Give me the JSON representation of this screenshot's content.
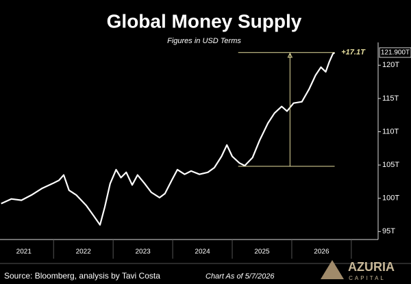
{
  "chart_data": {
    "type": "line",
    "title": "Global Money Supply",
    "subtitle": "Figures in USD Terms",
    "x": [
      2021.12,
      2021.29,
      2021.46,
      2021.63,
      2021.81,
      2021.98,
      2022.09,
      2022.17,
      2022.26,
      2022.38,
      2022.55,
      2022.67,
      2022.78,
      2022.86,
      2022.95,
      2023.05,
      2023.13,
      2023.22,
      2023.32,
      2023.41,
      2023.53,
      2023.64,
      2023.78,
      2023.87,
      2023.99,
      2024.08,
      2024.2,
      2024.31,
      2024.45,
      2024.59,
      2024.7,
      2024.82,
      2024.91,
      2025.0,
      2025.12,
      2025.21,
      2025.34,
      2025.46,
      2025.6,
      2025.71,
      2025.83,
      2025.92,
      2026.03,
      2026.17,
      2026.29,
      2026.4,
      2026.49,
      2026.57,
      2026.63,
      2026.69,
      2026.72
    ],
    "values": [
      99.2,
      99.9,
      99.7,
      100.5,
      101.5,
      102.2,
      102.7,
      103.5,
      101.2,
      100.5,
      98.9,
      97.4,
      96.0,
      98.7,
      102.2,
      104.3,
      103.1,
      103.9,
      102.0,
      103.5,
      102.2,
      100.9,
      100.1,
      100.7,
      102.8,
      104.3,
      103.6,
      104.1,
      103.6,
      103.9,
      104.6,
      106.3,
      108.0,
      106.3,
      105.3,
      104.9,
      106.1,
      108.7,
      111.3,
      112.8,
      113.8,
      113.1,
      114.3,
      114.5,
      116.4,
      118.5,
      119.7,
      119.0,
      120.5,
      121.7,
      121.9
    ],
    "color": "#ffffff",
    "xlim": [
      2021.1,
      2027.45
    ],
    "ylim": [
      93.8,
      122.6
    ],
    "xticks": [
      {
        "value": 2021.5,
        "label": "2021"
      },
      {
        "value": 2022.5,
        "label": "2022"
      },
      {
        "value": 2023.5,
        "label": "2023"
      },
      {
        "value": 2024.5,
        "label": "2024"
      },
      {
        "value": 2025.5,
        "label": "2025"
      },
      {
        "value": 2026.5,
        "label": "2026"
      }
    ],
    "yticks": [
      {
        "value": 95,
        "label": "95T"
      },
      {
        "value": 100,
        "label": "100T"
      },
      {
        "value": 105,
        "label": "105T"
      },
      {
        "value": 110,
        "label": "110T"
      },
      {
        "value": 115,
        "label": "115T"
      },
      {
        "value": 120,
        "label": "120T"
      }
    ],
    "last_label": {
      "value": 121.9,
      "label": "121.900T"
    },
    "annotation": {
      "text": "+17.1T",
      "from": 104.8,
      "to": 121.9,
      "x_start": 2025.1,
      "x_end": 2026.72,
      "x_arrow": 2025.97,
      "color": "#e8e0a0"
    },
    "source": "Source: Bloomberg, analysis by Tavi Costa",
    "note": "Chart As of 5/7/2026",
    "logo": {
      "name": "AZURIA",
      "sub": "CAPITAL"
    }
  }
}
